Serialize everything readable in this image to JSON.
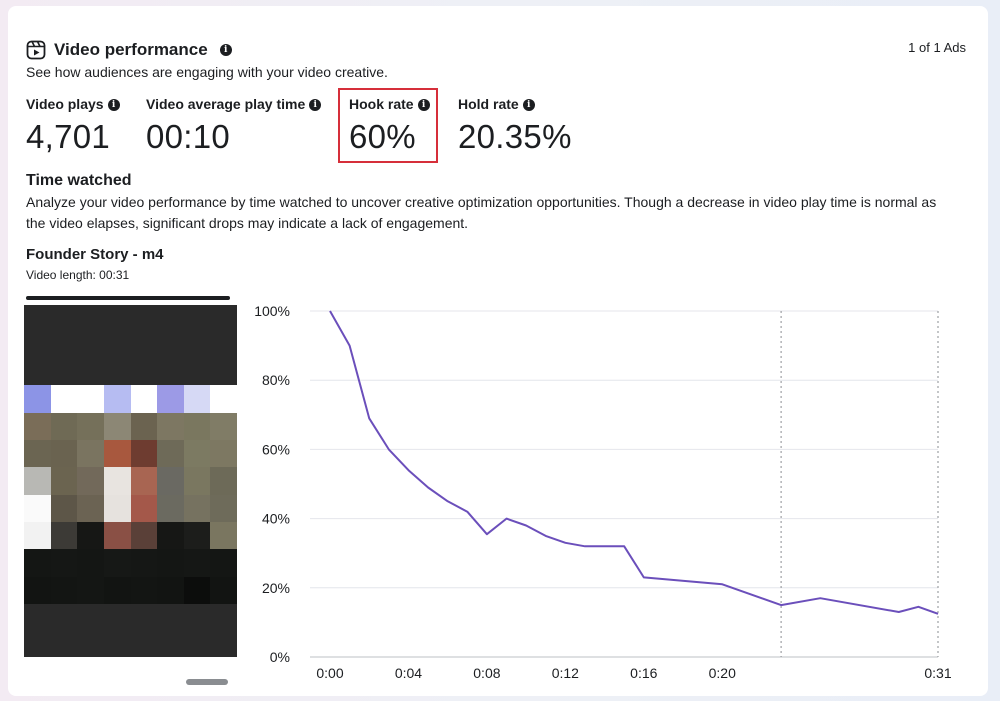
{
  "panel": {
    "title": "Video performance",
    "subtitle": "See how audiences are engaging with your video creative.",
    "pager": "1 of 1 Ads"
  },
  "metrics": [
    {
      "label": "Video plays",
      "value": "4,701"
    },
    {
      "label": "Video average play time",
      "value": "00:10"
    },
    {
      "label": "Hook rate",
      "value": "60%"
    },
    {
      "label": "Hold rate",
      "value": "20.35%"
    }
  ],
  "time_watched": {
    "title": "Time watched",
    "description": "Analyze your video performance by time watched to uncover creative optimization opportunities. Though a decrease in video play time is normal as the video elapses, significant drops may indicate a lack of engagement."
  },
  "video": {
    "title": "Founder Story - m4",
    "length_label": "Video length: 00:31"
  },
  "colors": {
    "line": "#6b4fbb",
    "highlight_border": "#d62f3a"
  },
  "chart_data": {
    "type": "line",
    "title": "",
    "xlabel": "",
    "ylabel": "",
    "x_unit": "seconds",
    "y_unit": "percent",
    "ylim": [
      0,
      100
    ],
    "xlim": [
      0,
      31
    ],
    "y_ticks": [
      "0%",
      "20%",
      "40%",
      "60%",
      "80%",
      "100%"
    ],
    "y_tick_values": [
      0,
      20,
      40,
      60,
      80,
      100
    ],
    "x_ticks": [
      "0:00",
      "0:04",
      "0:08",
      "0:12",
      "0:16",
      "0:20",
      "0:31"
    ],
    "x_tick_values": [
      0,
      4,
      8,
      12,
      16,
      20,
      31
    ],
    "grid": true,
    "vertical_dotted_lines": [
      23,
      31
    ],
    "series": [
      {
        "values": [
          {
            "x": 0,
            "y": 100
          },
          {
            "x": 1,
            "y": 90
          },
          {
            "x": 2,
            "y": 69
          },
          {
            "x": 3,
            "y": 60
          },
          {
            "x": 4,
            "y": 54
          },
          {
            "x": 5,
            "y": 49
          },
          {
            "x": 6,
            "y": 45
          },
          {
            "x": 7,
            "y": 42
          },
          {
            "x": 8,
            "y": 35.5
          },
          {
            "x": 9,
            "y": 40
          },
          {
            "x": 10,
            "y": 38
          },
          {
            "x": 11,
            "y": 35
          },
          {
            "x": 12,
            "y": 33
          },
          {
            "x": 13,
            "y": 32
          },
          {
            "x": 14,
            "y": 32
          },
          {
            "x": 15,
            "y": 32
          },
          {
            "x": 16,
            "y": 23
          },
          {
            "x": 20,
            "y": 21
          },
          {
            "x": 23,
            "y": 15
          },
          {
            "x": 25,
            "y": 17
          },
          {
            "x": 29,
            "y": 13
          },
          {
            "x": 30,
            "y": 14.5
          },
          {
            "x": 31,
            "y": 12.5
          }
        ]
      }
    ]
  }
}
